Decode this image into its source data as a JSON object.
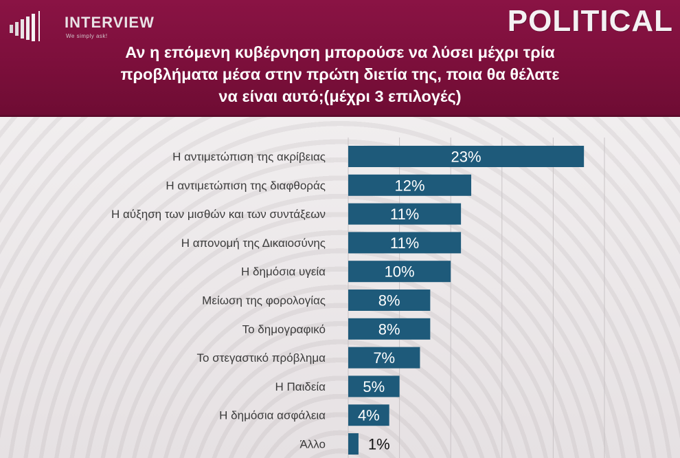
{
  "header": {
    "logo_text": "INTERVIEW",
    "logo_tagline": "We simply ask!",
    "brand": "POLITICAL",
    "title_lines": [
      "Αν η επόμενη κυβέρνηση μπορούσε να λύσει μέχρι τρία",
      "προβλήματα μέσα στην πρώτη διετία της, ποια θα θέλατε",
      "να είναι αυτό;(μέχρι 3 επιλογές)"
    ]
  },
  "colors": {
    "header": "#7c0f3b",
    "bar": "#1e5a7a",
    "grid": "#c9c4c6"
  },
  "chart_data": {
    "type": "bar",
    "orientation": "horizontal",
    "categories": [
      "Η αντιμετώπιση της ακρίβειας",
      "Η αντιμετώπιση της διαφθοράς",
      "Η αύξηση των μισθών και των συντάξεων",
      "Η απονομή της Δικαιοσύνης",
      "Η δημόσια υγεία",
      "Μείωση της φορολογίας",
      "Το δημογραφικό",
      "Το στεγαστικό πρόβλημα",
      "Η Παιδεία",
      "Η δημόσια ασφάλεια",
      "Άλλο"
    ],
    "values": [
      23,
      12,
      11,
      11,
      10,
      8,
      8,
      7,
      5,
      4,
      1
    ],
    "data_labels": [
      "23%",
      "12%",
      "11%",
      "11%",
      "10%",
      "8%",
      "8%",
      "7%",
      "5%",
      "4%",
      "1%"
    ],
    "xlim": [
      0,
      25
    ],
    "grid": true
  }
}
